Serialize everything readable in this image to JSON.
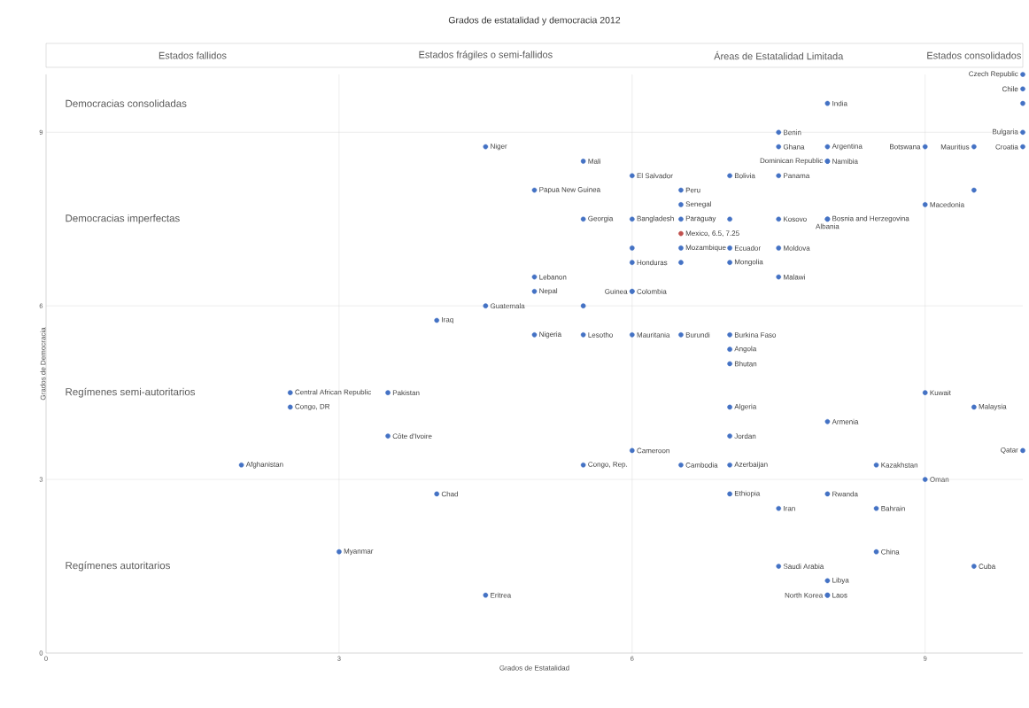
{
  "chart_data": {
    "type": "scatter",
    "title": "Grados de estatalidad y democracia 2012",
    "xlabel": "Grados de Estatalidad",
    "ylabel": "Grados de Democracia",
    "xlim": [
      0,
      10
    ],
    "ylim": [
      0,
      10
    ],
    "xticks": [
      0,
      3,
      6,
      9
    ],
    "yticks": [
      0,
      3,
      6,
      9
    ],
    "grid": true,
    "marker": "circle",
    "series": [
      {
        "color": "#4472c4",
        "x": [
          10,
          10,
          10,
          10,
          10,
          9.5,
          9,
          9.5,
          9,
          8,
          7.5,
          7.5,
          8,
          8,
          8,
          7.5,
          7,
          4.5,
          5.5,
          6,
          6.5,
          5,
          6.5,
          5.5,
          6,
          6.5,
          7,
          7.5,
          8,
          8,
          6,
          6.5,
          7,
          7.5,
          6,
          6.5,
          7,
          7.5,
          5,
          5,
          6,
          6,
          4.5,
          5.5,
          4,
          5,
          5.5,
          6,
          6.5,
          7,
          7,
          7,
          2.5,
          2.5,
          3.5,
          3.5,
          2,
          9,
          9.5,
          7,
          8,
          7,
          6,
          10,
          5.5,
          6.5,
          7,
          8.5,
          9,
          4,
          7,
          8,
          7.5,
          8.5,
          3,
          8.5,
          7.5,
          9.5,
          8,
          8,
          8,
          4.5
        ],
        "values": [
          10,
          9.75,
          9.5,
          9,
          8.75,
          8.75,
          8.75,
          8,
          7.75,
          9.5,
          9,
          8.75,
          8.75,
          8.5,
          8.5,
          8.25,
          8.25,
          8.75,
          8.5,
          8.25,
          8,
          8,
          7.75,
          7.5,
          7.5,
          7.5,
          7.5,
          7.5,
          7.5,
          7.5,
          7,
          7,
          7,
          7,
          6.75,
          6.75,
          6.75,
          6.5,
          6.5,
          6.25,
          6.25,
          6.25,
          6,
          6,
          5.75,
          5.5,
          5.5,
          5.5,
          5.5,
          5.5,
          5.25,
          5,
          4.5,
          4.25,
          4.5,
          3.75,
          3.25,
          4.5,
          4.25,
          4.25,
          4,
          3.75,
          3.5,
          3.5,
          3.25,
          3.25,
          3.25,
          3.25,
          3,
          2.75,
          2.75,
          2.75,
          2.5,
          2.5,
          1.75,
          1.75,
          1.5,
          1.5,
          1.25,
          1,
          1,
          1
        ]
      },
      {
        "color": "#c0504d",
        "x": [
          6.5
        ],
        "values": [
          7.25
        ]
      }
    ],
    "annotations": [
      "Estados fallidos",
      "Estados frágiles o semi-fallidos",
      "Áreas de Estatalidad Limitada",
      "Estados consolidados",
      "Democracias consolidadas",
      "Democracias imperfectas",
      "Regímenes semi-autoritarios",
      "Regímenes autoritarios",
      {
        "text": "Czech Republic",
        "x": 10,
        "y": 10
      },
      {
        "text": "Chile",
        "x": 10,
        "y": 9.75
      },
      {
        "text": "Bulgaria",
        "x": 10,
        "y": 9
      },
      {
        "text": "Croatia",
        "x": 10,
        "y": 8.75
      },
      {
        "text": "Mauritius",
        "x": 9.5,
        "y": 8.75
      },
      {
        "text": "Botswana",
        "x": 9,
        "y": 8.75
      },
      {
        "text": "Macedonia",
        "x": 9,
        "y": 7.75
      },
      {
        "text": "India",
        "x": 8,
        "y": 9.5
      },
      {
        "text": "Benin",
        "x": 7.5,
        "y": 9
      },
      {
        "text": "Ghana",
        "x": 7.5,
        "y": 8.75
      },
      {
        "text": "Argentina",
        "x": 8,
        "y": 8.75
      },
      {
        "text": "Namibia",
        "x": 8,
        "y": 8.5
      },
      {
        "text": "Dominican Republic",
        "x": 8,
        "y": 8.5
      },
      {
        "text": "Panama",
        "x": 7.5,
        "y": 8.25
      },
      {
        "text": "Bolivia",
        "x": 7,
        "y": 8.25
      },
      {
        "text": "Niger",
        "x": 4.5,
        "y": 8.75
      },
      {
        "text": "Mali",
        "x": 5.5,
        "y": 8.5
      },
      {
        "text": "El Salvador",
        "x": 6,
        "y": 8.25
      },
      {
        "text": "Peru",
        "x": 6.5,
        "y": 8
      },
      {
        "text": "Papua New Guinea",
        "x": 5,
        "y": 8
      },
      {
        "text": "Senegal",
        "x": 6.5,
        "y": 7.75
      },
      {
        "text": "Georgia",
        "x": 5.5,
        "y": 7.5
      },
      {
        "text": "Bangladesh",
        "x": 6,
        "y": 7.5
      },
      {
        "text": "Paraguay",
        "x": 6.5,
        "y": 7.5
      },
      {
        "text": "Kosovo",
        "x": 7.5,
        "y": 7.5
      },
      {
        "text": "Bosnia and Herzegovina",
        "x": 8,
        "y": 7.5
      },
      {
        "text": "Albania",
        "x": 8,
        "y": 7.5
      },
      {
        "text": "Mexico, 6.5, 7.25",
        "x": 6.5,
        "y": 7.25
      },
      {
        "text": "Mozambique",
        "x": 6.5,
        "y": 7
      },
      {
        "text": "Ecuador",
        "x": 7,
        "y": 7
      },
      {
        "text": "Moldova",
        "x": 7.5,
        "y": 7
      },
      {
        "text": "Honduras",
        "x": 6,
        "y": 6.75
      },
      {
        "text": "Mongolia",
        "x": 7,
        "y": 6.75
      },
      {
        "text": "Malawi",
        "x": 7.5,
        "y": 6.5
      },
      {
        "text": "Lebanon",
        "x": 5,
        "y": 6.5
      },
      {
        "text": "Nepal",
        "x": 5,
        "y": 6.25
      },
      {
        "text": "Colombia",
        "x": 6,
        "y": 6.25
      },
      {
        "text": "Guinea",
        "x": 6,
        "y": 6.25
      },
      {
        "text": "Guatemala",
        "x": 4.5,
        "y": 6
      },
      {
        "text": "Iraq",
        "x": 4,
        "y": 5.75
      },
      {
        "text": "Nigeria",
        "x": 5,
        "y": 5.5
      },
      {
        "text": "Lesotho",
        "x": 5.5,
        "y": 5.5
      },
      {
        "text": "Mauritania",
        "x": 6,
        "y": 5.5
      },
      {
        "text": "Burundi",
        "x": 6.5,
        "y": 5.5
      },
      {
        "text": "Burkina Faso",
        "x": 7,
        "y": 5.5
      },
      {
        "text": "Angola",
        "x": 7,
        "y": 5.25
      },
      {
        "text": "Bhutan",
        "x": 7,
        "y": 5
      },
      {
        "text": "Central African Republic",
        "x": 2.5,
        "y": 4.5
      },
      {
        "text": "Congo, DR",
        "x": 2.5,
        "y": 4.25
      },
      {
        "text": "Pakistan",
        "x": 3.5,
        "y": 4.5
      },
      {
        "text": "Côte d'Ivoire",
        "x": 3.5,
        "y": 3.75
      },
      {
        "text": "Afghanistan",
        "x": 2,
        "y": 3.25
      },
      {
        "text": "Kuwait",
        "x": 9,
        "y": 4.5
      },
      {
        "text": "Malaysia",
        "x": 9.5,
        "y": 4.25
      },
      {
        "text": "Algeria",
        "x": 7,
        "y": 4.25
      },
      {
        "text": "Armenia",
        "x": 8,
        "y": 4
      },
      {
        "text": "Jordan",
        "x": 7,
        "y": 3.75
      },
      {
        "text": "Cameroon",
        "x": 6,
        "y": 3.5
      },
      {
        "text": "Qatar",
        "x": 10,
        "y": 3.5
      },
      {
        "text": "Congo, Rep.",
        "x": 5.5,
        "y": 3.25
      },
      {
        "text": "Cambodia",
        "x": 6.5,
        "y": 3.25
      },
      {
        "text": "Azerbaijan",
        "x": 7,
        "y": 3.25
      },
      {
        "text": "Kazakhstan",
        "x": 8.5,
        "y": 3.25
      },
      {
        "text": "Oman",
        "x": 9,
        "y": 3
      },
      {
        "text": "Chad",
        "x": 4,
        "y": 2.75
      },
      {
        "text": "Ethiopia",
        "x": 7,
        "y": 2.75
      },
      {
        "text": "Rwanda",
        "x": 8,
        "y": 2.75
      },
      {
        "text": "Iran",
        "x": 7.5,
        "y": 2.5
      },
      {
        "text": "Bahrain",
        "x": 8.5,
        "y": 2.5
      },
      {
        "text": "Myanmar",
        "x": 3,
        "y": 1.75
      },
      {
        "text": "China",
        "x": 8.5,
        "y": 1.75
      },
      {
        "text": "Saudi Arabia",
        "x": 7.5,
        "y": 1.5
      },
      {
        "text": "Cuba",
        "x": 9.5,
        "y": 1.5
      },
      {
        "text": "Libya",
        "x": 8,
        "y": 1.25
      },
      {
        "text": "Laos",
        "x": 8,
        "y": 1
      },
      {
        "text": "North Korea",
        "x": 8,
        "y": 1
      },
      {
        "text": "Eritrea",
        "x": 4.5,
        "y": 1
      }
    ]
  }
}
